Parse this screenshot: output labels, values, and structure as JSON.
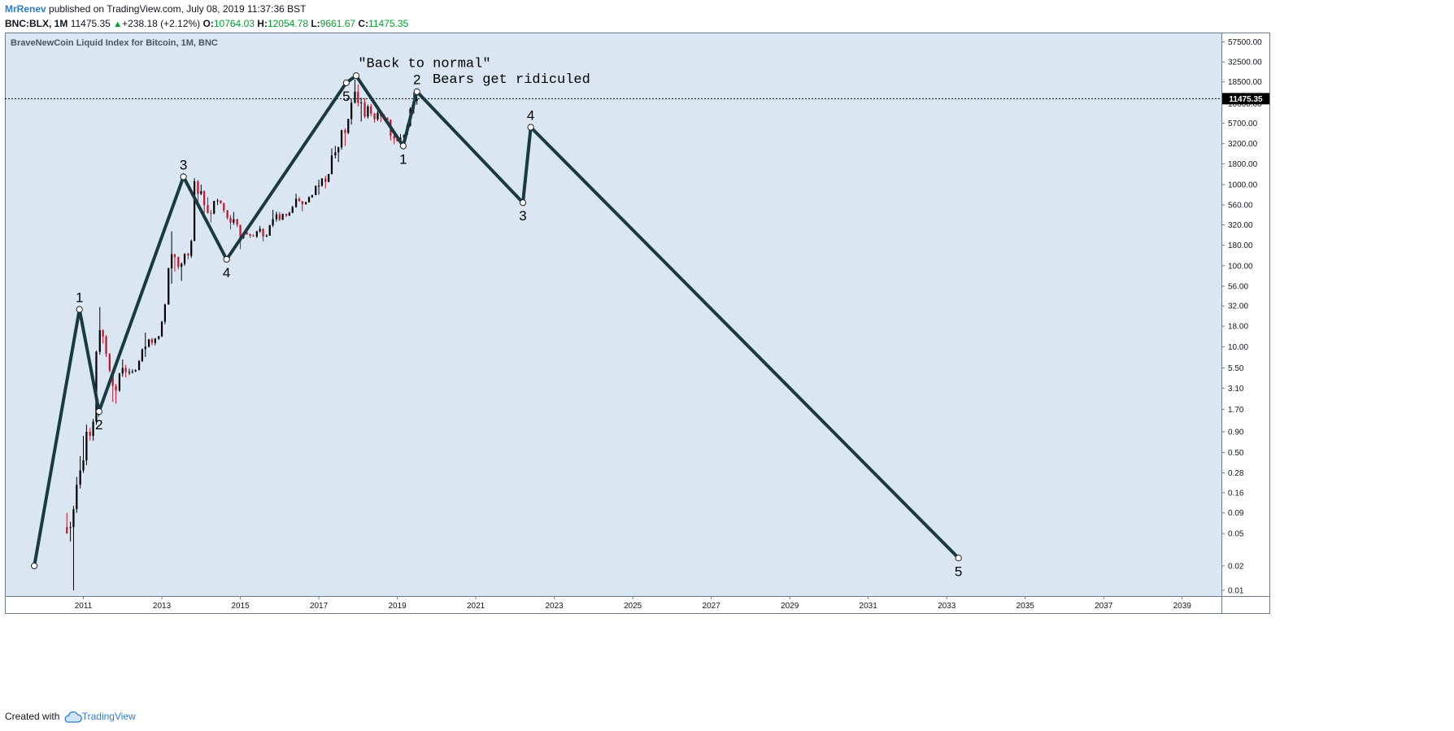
{
  "header": {
    "author": "MrRenev",
    "published_text": "published on TradingView.com, July 08, 2019 11:37:36 BST",
    "symbol": "BNC:BLX, 1M",
    "last": "11475.35",
    "change": "+238.18 (+2.12%)",
    "open_label": "O:",
    "open": "10764.03",
    "high_label": "H:",
    "high": "12054.78",
    "low_label": "L:",
    "low": "9661.67",
    "close_label": "C:",
    "close": "11475.35",
    "up_arrow_icon": "triangle-up-icon",
    "positive_color": "#009e2c"
  },
  "footer": {
    "created_with": "Created with",
    "brand": "TradingView",
    "brand_icon": "tradingview-cloud-icon"
  },
  "chart_data": {
    "type": "line",
    "title": "BraveNewCoin Liquid Index for Bitcoin, 1M, BNC",
    "yscale": "log",
    "x_ticks": [
      "2011",
      "2013",
      "2015",
      "2017",
      "2019",
      "2021",
      "2023",
      "2025",
      "2027",
      "2029",
      "2031",
      "2033",
      "2035",
      "2037",
      "2039"
    ],
    "y_ticks": [
      "57500.00",
      "32500.00",
      "18500.00",
      "10000.00",
      "5700.00",
      "3200.00",
      "1800.00",
      "1000.00",
      "560.00",
      "320.00",
      "180.00",
      "100.00",
      "56.00",
      "32.00",
      "18.00",
      "10.00",
      "5.50",
      "3.10",
      "1.70",
      "0.90",
      "0.50",
      "0.28",
      "0.16",
      "0.09",
      "0.05",
      "0.02",
      "0.01"
    ],
    "current_price": {
      "value": 11475.35,
      "label": "11475.35"
    },
    "xlim": [
      2009.0,
      2040.0
    ],
    "ylim": [
      0.0085,
      75000
    ],
    "background_color": "#dae7f2",
    "wave_color": "#1a3a40",
    "up_candle_color": "#000000",
    "down_candle_color": "#c0142a",
    "annotations": [
      {
        "text": "\"Back to normal\"",
        "x": 2018.0,
        "y": 28000
      },
      {
        "text": "Bears get ridiculed",
        "x": 2019.9,
        "y": 18000
      }
    ],
    "wave_points": [
      {
        "label": "",
        "x": 2009.75,
        "y": 0.02
      },
      {
        "label": "1",
        "x": 2010.9,
        "y": 29
      },
      {
        "label": "2",
        "x": 2011.4,
        "y": 1.6
      },
      {
        "label": "3",
        "x": 2013.55,
        "y": 1250
      },
      {
        "label": "4",
        "x": 2014.65,
        "y": 120
      },
      {
        "label": "5",
        "x": 2017.7,
        "y": 18000
      },
      {
        "label": "",
        "x": 2017.95,
        "y": 22000
      },
      {
        "label": "1",
        "x": 2019.15,
        "y": 3000
      },
      {
        "label": "2",
        "x": 2019.5,
        "y": 14000
      },
      {
        "label": "3",
        "x": 2022.2,
        "y": 600
      },
      {
        "label": "4",
        "x": 2022.4,
        "y": 5100
      },
      {
        "label": "5",
        "x": 2033.3,
        "y": 0.025
      }
    ],
    "candles": [
      [
        2010.58,
        0.06,
        0.05,
        0.09,
        0.05
      ],
      [
        2010.67,
        0.06,
        0.06,
        0.07,
        0.04
      ],
      [
        2010.75,
        0.06,
        0.1,
        0.11,
        0.01
      ],
      [
        2010.83,
        0.1,
        0.2,
        0.25,
        0.09
      ],
      [
        2010.92,
        0.2,
        0.3,
        0.45,
        0.18
      ],
      [
        2011.0,
        0.3,
        0.4,
        0.8,
        0.28
      ],
      [
        2011.08,
        0.4,
        0.9,
        1.1,
        0.35
      ],
      [
        2011.17,
        0.9,
        0.8,
        1.0,
        0.7
      ],
      [
        2011.25,
        0.8,
        1.2,
        1.3,
        0.7
      ],
      [
        2011.33,
        1.2,
        8.7,
        9.0,
        1.1
      ],
      [
        2011.42,
        8.7,
        16.1,
        31.0,
        8.0
      ],
      [
        2011.5,
        16.1,
        13.4,
        16.5,
        11.0
      ],
      [
        2011.58,
        13.4,
        8.2,
        14.0,
        7.5
      ],
      [
        2011.67,
        8.2,
        5.1,
        8.4,
        4.8
      ],
      [
        2011.75,
        5.1,
        3.3,
        5.2,
        2.1
      ],
      [
        2011.83,
        3.3,
        2.9,
        3.5,
        2.0
      ],
      [
        2011.92,
        2.9,
        4.7,
        4.8,
        2.8
      ],
      [
        2012.0,
        4.7,
        5.5,
        7.0,
        4.3
      ],
      [
        2012.08,
        5.5,
        4.9,
        6.0,
        4.2
      ],
      [
        2012.17,
        4.9,
        4.9,
        5.4,
        4.5
      ],
      [
        2012.25,
        4.9,
        5.0,
        5.3,
        4.7
      ],
      [
        2012.33,
        5.0,
        5.2,
        5.3,
        4.9
      ],
      [
        2012.42,
        5.2,
        6.7,
        6.9,
        5.1
      ],
      [
        2012.5,
        6.7,
        9.4,
        9.5,
        6.5
      ],
      [
        2012.58,
        9.4,
        10.1,
        15.0,
        7.5
      ],
      [
        2012.67,
        10.1,
        12.4,
        12.5,
        9.8
      ],
      [
        2012.75,
        12.4,
        11.2,
        12.9,
        10.5
      ],
      [
        2012.83,
        11.2,
        12.6,
        12.9,
        10.5
      ],
      [
        2012.92,
        12.6,
        13.5,
        13.7,
        12.2
      ],
      [
        2013.0,
        13.5,
        20.4,
        21.0,
        13.2
      ],
      [
        2013.08,
        20.4,
        33.4,
        34.0,
        19.0
      ],
      [
        2013.17,
        33.4,
        93.0,
        95.0,
        33.0
      ],
      [
        2013.25,
        93.0,
        139.0,
        266.0,
        60.0
      ],
      [
        2013.33,
        139.0,
        128.0,
        140.0,
        85.0
      ],
      [
        2013.42,
        128.0,
        97.0,
        130.0,
        90.0
      ],
      [
        2013.5,
        97.0,
        106.0,
        110.0,
        65.0
      ],
      [
        2013.58,
        106.0,
        141.0,
        142.0,
        100.0
      ],
      [
        2013.67,
        141.0,
        133.0,
        145.0,
        120.0
      ],
      [
        2013.75,
        133.0,
        203.0,
        210.0,
        125.0
      ],
      [
        2013.83,
        203.0,
        1100.0,
        1200.0,
        200.0
      ],
      [
        2013.92,
        1100.0,
        770.0,
        1150.0,
        520.0
      ],
      [
        2014.0,
        770.0,
        830.0,
        1000.0,
        740.0
      ],
      [
        2014.08,
        830.0,
        560.0,
        850.0,
        420.0
      ],
      [
        2014.17,
        560.0,
        450.0,
        700.0,
        440.0
      ],
      [
        2014.25,
        450.0,
        440.0,
        490.0,
        340.0
      ],
      [
        2014.33,
        440.0,
        630.0,
        630.0,
        430.0
      ],
      [
        2014.42,
        630.0,
        640.0,
        670.0,
        560.0
      ],
      [
        2014.5,
        640.0,
        590.0,
        640.0,
        580.0
      ],
      [
        2014.58,
        590.0,
        480.0,
        600.0,
        450.0
      ],
      [
        2014.67,
        480.0,
        390.0,
        490.0,
        370.0
      ],
      [
        2014.75,
        390.0,
        340.0,
        420.0,
        280.0
      ],
      [
        2014.83,
        340.0,
        375.0,
        460.0,
        320.0
      ],
      [
        2014.92,
        375.0,
        320.0,
        380.0,
        300.0
      ],
      [
        2015.0,
        320.0,
        220.0,
        320.0,
        160.0
      ],
      [
        2015.08,
        220.0,
        255.0,
        260.0,
        215.0
      ],
      [
        2015.17,
        255.0,
        245.0,
        300.0,
        240.0
      ],
      [
        2015.25,
        245.0,
        235.0,
        250.0,
        220.0
      ],
      [
        2015.33,
        235.0,
        230.0,
        245.0,
        230.0
      ],
      [
        2015.42,
        230.0,
        265.0,
        270.0,
        220.0
      ],
      [
        2015.5,
        265.0,
        285.0,
        310.0,
        255.0
      ],
      [
        2015.58,
        285.0,
        230.0,
        290.0,
        200.0
      ],
      [
        2015.67,
        230.0,
        235.0,
        245.0,
        225.0
      ],
      [
        2015.75,
        235.0,
        315.0,
        320.0,
        235.0
      ],
      [
        2015.83,
        315.0,
        375.0,
        490.0,
        300.0
      ],
      [
        2015.92,
        375.0,
        430.0,
        465.0,
        350.0
      ],
      [
        2016.0,
        430.0,
        370.0,
        460.0,
        355.0
      ],
      [
        2016.08,
        370.0,
        435.0,
        440.0,
        365.0
      ],
      [
        2016.17,
        435.0,
        415.0,
        440.0,
        400.0
      ],
      [
        2016.25,
        415.0,
        450.0,
        465.0,
        410.0
      ],
      [
        2016.33,
        450.0,
        530.0,
        550.0,
        445.0
      ],
      [
        2016.42,
        530.0,
        670.0,
        770.0,
        520.0
      ],
      [
        2016.5,
        670.0,
        625.0,
        705.0,
        620.0
      ],
      [
        2016.58,
        625.0,
        575.0,
        630.0,
        470.0
      ],
      [
        2016.67,
        575.0,
        610.0,
        615.0,
        565.0
      ],
      [
        2016.75,
        610.0,
        700.0,
        720.0,
        600.0
      ],
      [
        2016.83,
        700.0,
        745.0,
        750.0,
        690.0
      ],
      [
        2016.92,
        745.0,
        960.0,
        980.0,
        740.0
      ],
      [
        2017.0,
        960.0,
        970.0,
        1150.0,
        750.0
      ],
      [
        2017.08,
        970.0,
        1190.0,
        1200.0,
        940.0
      ],
      [
        2017.17,
        1190.0,
        1080.0,
        1290.0,
        900.0
      ],
      [
        2017.25,
        1080.0,
        1350.0,
        1360.0,
        1080.0
      ],
      [
        2017.33,
        1350.0,
        2300.0,
        2800.0,
        1340.0
      ],
      [
        2017.42,
        2300.0,
        2500.0,
        3000.0,
        2100.0
      ],
      [
        2017.5,
        2500.0,
        2880.0,
        2950.0,
        1900.0
      ],
      [
        2017.58,
        2880.0,
        4700.0,
        4750.0,
        2700.0
      ],
      [
        2017.67,
        4700.0,
        4340.0,
        4950.0,
        3000.0
      ],
      [
        2017.75,
        4340.0,
        6450.0,
        6500.0,
        4200.0
      ],
      [
        2017.83,
        6450.0,
        10200.0,
        11500.0,
        5500.0
      ],
      [
        2017.92,
        10200.0,
        14000.0,
        19700.0,
        10000.0
      ],
      [
        2018.0,
        14000.0,
        10200.0,
        17200.0,
        9200.0
      ],
      [
        2018.08,
        10200.0,
        10300.0,
        11800.0,
        6000.0
      ],
      [
        2018.17,
        10300.0,
        6900.0,
        11600.0,
        6600.0
      ],
      [
        2018.25,
        6900.0,
        9200.0,
        9700.0,
        6500.0
      ],
      [
        2018.33,
        9200.0,
        7500.0,
        9900.0,
        7000.0
      ],
      [
        2018.42,
        7500.0,
        6400.0,
        7700.0,
        5800.0
      ],
      [
        2018.5,
        6400.0,
        7700.0,
        8400.0,
        6100.0
      ],
      [
        2018.58,
        7700.0,
        7000.0,
        7700.0,
        5900.0
      ],
      [
        2018.67,
        7000.0,
        6600.0,
        7400.0,
        6100.0
      ],
      [
        2018.75,
        6600.0,
        6300.0,
        6800.0,
        6200.0
      ],
      [
        2018.83,
        6300.0,
        4000.0,
        6400.0,
        3500.0
      ],
      [
        2018.92,
        4000.0,
        3700.0,
        4300.0,
        3150.0
      ],
      [
        2019.0,
        3700.0,
        3450.0,
        4000.0,
        3400.0
      ],
      [
        2019.08,
        3450.0,
        3800.0,
        4200.0,
        3350.0
      ],
      [
        2019.17,
        3800.0,
        4100.0,
        4150.0,
        3700.0
      ],
      [
        2019.25,
        4100.0,
        5300.0,
        5600.0,
        4050.0
      ],
      [
        2019.33,
        5300.0,
        8600.0,
        9000.0,
        5200.0
      ],
      [
        2019.42,
        8600.0,
        10800.0,
        13800.0,
        7500.0
      ],
      [
        2019.5,
        10800.0,
        11475.35,
        12054.78,
        9661.67
      ]
    ]
  }
}
